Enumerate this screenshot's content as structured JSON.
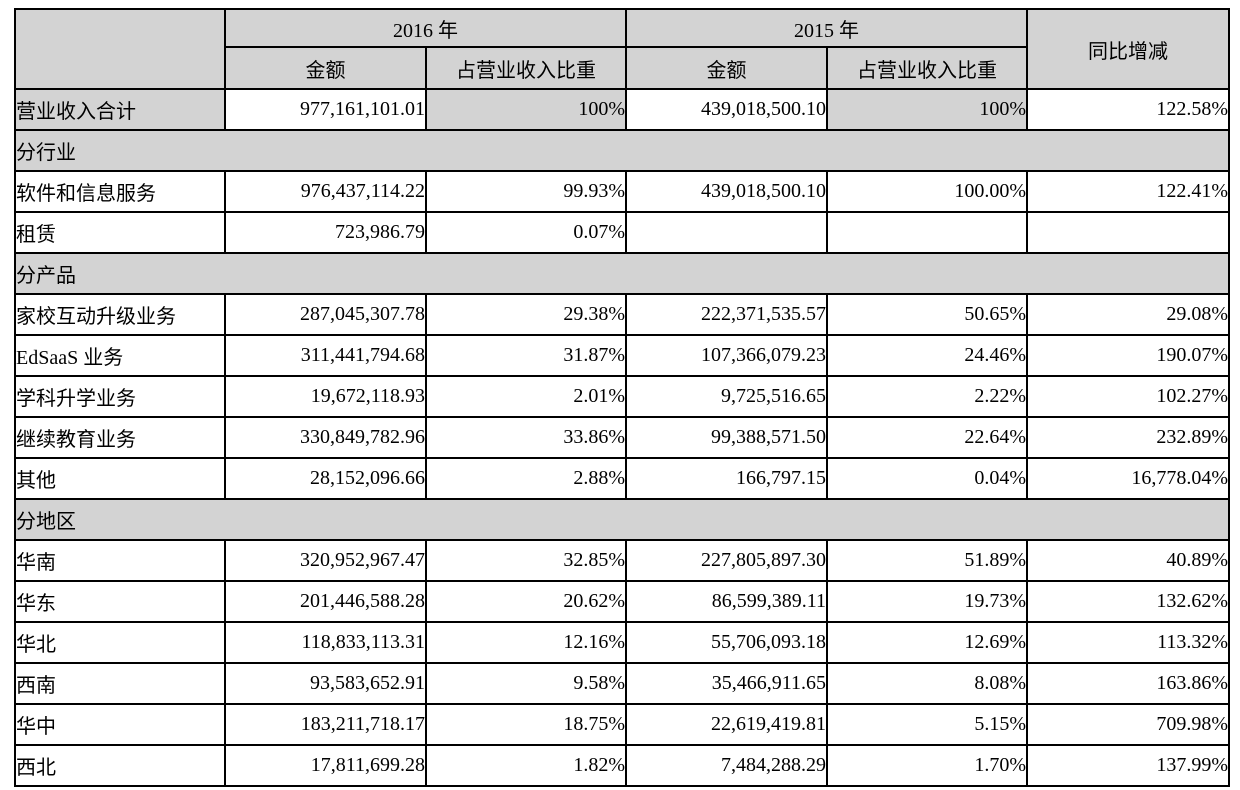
{
  "table": {
    "header": {
      "year_2016": "2016 年",
      "year_2015": "2015 年",
      "yoy": "同比增减",
      "amount": "金额",
      "share": "占营业收入比重"
    },
    "rows": [
      {
        "type": "total",
        "label": "营业收入合计",
        "a2016": "977,161,101.01",
        "p2016": "100%",
        "a2015": "439,018,500.10",
        "p2015": "100%",
        "yoy": "122.58%"
      },
      {
        "type": "section",
        "label": "分行业"
      },
      {
        "type": "data",
        "label": "软件和信息服务",
        "a2016": "976,437,114.22",
        "p2016": "99.93%",
        "a2015": "439,018,500.10",
        "p2015": "100.00%",
        "yoy": "122.41%"
      },
      {
        "type": "data",
        "label": "租赁",
        "a2016": "723,986.79",
        "p2016": "0.07%",
        "a2015": "",
        "p2015": "",
        "yoy": ""
      },
      {
        "type": "section",
        "label": "分产品"
      },
      {
        "type": "data",
        "label": "家校互动升级业务",
        "a2016": "287,045,307.78",
        "p2016": "29.38%",
        "a2015": "222,371,535.57",
        "p2015": "50.65%",
        "yoy": "29.08%"
      },
      {
        "type": "data",
        "label": "EdSaaS 业务",
        "a2016": "311,441,794.68",
        "p2016": "31.87%",
        "a2015": "107,366,079.23",
        "p2015": "24.46%",
        "yoy": "190.07%"
      },
      {
        "type": "data",
        "label": "学科升学业务",
        "a2016": "19,672,118.93",
        "p2016": "2.01%",
        "a2015": "9,725,516.65",
        "p2015": "2.22%",
        "yoy": "102.27%"
      },
      {
        "type": "data",
        "label": "继续教育业务",
        "a2016": "330,849,782.96",
        "p2016": "33.86%",
        "a2015": "99,388,571.50",
        "p2015": "22.64%",
        "yoy": "232.89%"
      },
      {
        "type": "data",
        "label": "其他",
        "a2016": "28,152,096.66",
        "p2016": "2.88%",
        "a2015": "166,797.15",
        "p2015": "0.04%",
        "yoy": "16,778.04%"
      },
      {
        "type": "section",
        "label": "分地区"
      },
      {
        "type": "data",
        "label": "华南",
        "a2016": "320,952,967.47",
        "p2016": "32.85%",
        "a2015": "227,805,897.30",
        "p2015": "51.89%",
        "yoy": "40.89%"
      },
      {
        "type": "data",
        "label": "华东",
        "a2016": "201,446,588.28",
        "p2016": "20.62%",
        "a2015": "86,599,389.11",
        "p2015": "19.73%",
        "yoy": "132.62%"
      },
      {
        "type": "data",
        "label": "华北",
        "a2016": "118,833,113.31",
        "p2016": "12.16%",
        "a2015": "55,706,093.18",
        "p2015": "12.69%",
        "yoy": "113.32%"
      },
      {
        "type": "data",
        "label": "西南",
        "a2016": "93,583,652.91",
        "p2016": "9.58%",
        "a2015": "35,466,911.65",
        "p2015": "8.08%",
        "yoy": "163.86%"
      },
      {
        "type": "data",
        "label": "华中",
        "a2016": "183,211,718.17",
        "p2016": "18.75%",
        "a2015": "22,619,419.81",
        "p2015": "5.15%",
        "yoy": "709.98%"
      },
      {
        "type": "data",
        "label": "西北",
        "a2016": "17,811,699.28",
        "p2016": "1.82%",
        "a2015": "7,484,288.29",
        "p2015": "1.70%",
        "yoy": "137.99%"
      }
    ]
  },
  "colors": {
    "header_fill": "#d3d3d3",
    "border": "#000000",
    "background": "#ffffff"
  }
}
